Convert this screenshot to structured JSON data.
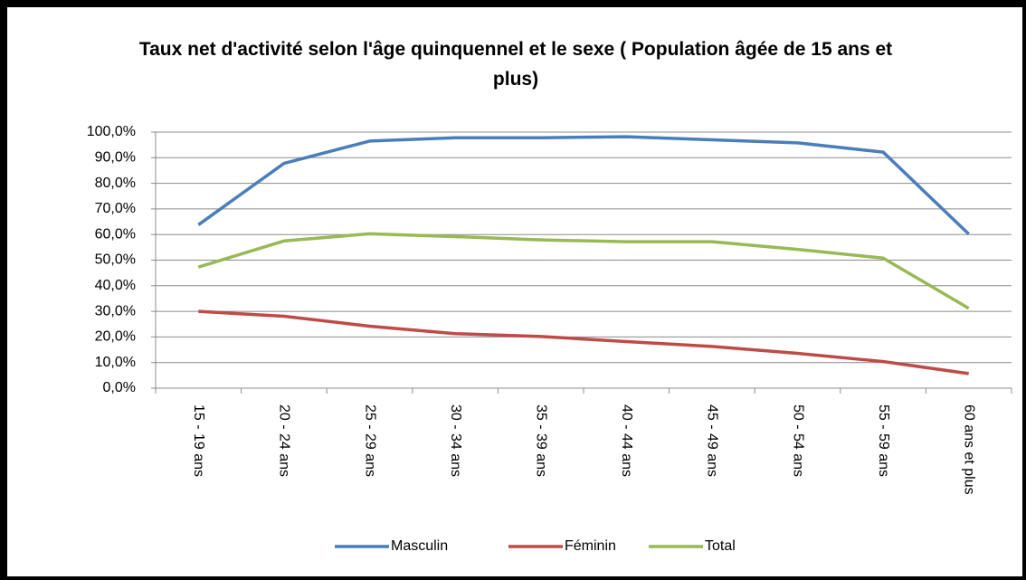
{
  "chart_data": {
    "type": "line",
    "title": "Taux net d'activité selon l'âge quinquennel et le sexe ( Population âgée de 15 ans et plus)",
    "categories": [
      "15 - 19 ans",
      "20 - 24 ans",
      "25 - 29 ans",
      "30 - 34 ans",
      "35 - 39 ans",
      "40 - 44 ans",
      "45 - 49 ans",
      "50 - 54 ans",
      "55 - 59 ans",
      "60 ans et plus"
    ],
    "series": [
      {
        "name": "Masculin",
        "color": "#4a7ebb",
        "values": [
          63.8,
          87.8,
          96.5,
          97.8,
          97.8,
          98.2,
          97.0,
          95.8,
          92.2,
          60.2
        ]
      },
      {
        "name": "Féminin",
        "color": "#be4b48",
        "values": [
          30.0,
          28.1,
          24.2,
          21.3,
          20.2,
          18.2,
          16.3,
          13.6,
          10.4,
          5.7
        ]
      },
      {
        "name": "Total",
        "color": "#98b954",
        "values": [
          47.3,
          57.5,
          60.3,
          59.2,
          57.9,
          57.2,
          57.2,
          54.2,
          50.8,
          31.2
        ]
      }
    ],
    "ylim": [
      0,
      100
    ],
    "yticks": [
      {
        "value": 0,
        "label": "0,0%"
      },
      {
        "value": 10,
        "label": "10,0%"
      },
      {
        "value": 20,
        "label": "20,0%"
      },
      {
        "value": 30,
        "label": "30,0%"
      },
      {
        "value": 40,
        "label": "40,0%"
      },
      {
        "value": 50,
        "label": "50,0%"
      },
      {
        "value": 60,
        "label": "60,0%"
      },
      {
        "value": 70,
        "label": "70,0%"
      },
      {
        "value": 80,
        "label": "80,0%"
      },
      {
        "value": 90,
        "label": "90,0%"
      },
      {
        "value": 100,
        "label": "100,0%"
      }
    ],
    "grid": true,
    "legend": "bottom"
  }
}
